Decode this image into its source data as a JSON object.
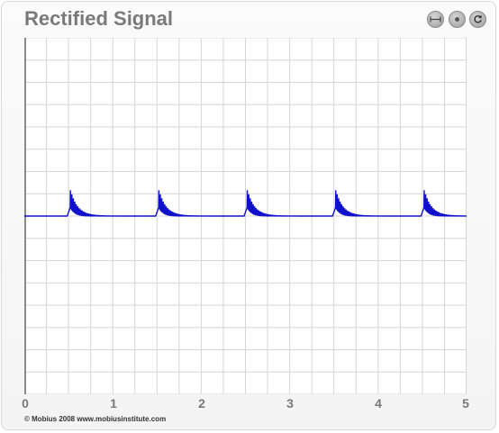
{
  "window": {
    "title": "Rectified Signal",
    "buttons": [
      {
        "name": "resize-button",
        "icon": "horizontal-arrows-icon"
      },
      {
        "name": "dot-button",
        "icon": "dot-icon"
      },
      {
        "name": "refresh-button",
        "icon": "refresh-icon"
      }
    ]
  },
  "footer": {
    "copyright": "© Mobius 2008 www.mobiusinstitute.com"
  },
  "colors": {
    "signal": "#1010cc",
    "grid": "#d6d6d6",
    "title": "#7a7a7a",
    "axis": "#8a8a8a"
  },
  "chart_data": {
    "type": "line",
    "title": "Rectified Signal",
    "xlabel": "",
    "ylabel": "",
    "xlim": [
      0,
      5
    ],
    "ylim": [
      -4,
      4
    ],
    "x_ticks": [
      "0",
      "1",
      "2",
      "3",
      "4",
      "5"
    ],
    "grid": true,
    "baseline": 0,
    "pulse_period": 1.0,
    "pulse_onsets": [
      0.52,
      1.52,
      2.52,
      3.52,
      4.52
    ],
    "pulse_peak": 0.6,
    "pulse_step_level": 0.2,
    "ring_frequency_per_unit": 60,
    "decay_time_constant": 0.08,
    "series": [
      {
        "values_description": "periodic decaying oscillation bursts above a flat baseline"
      }
    ]
  }
}
